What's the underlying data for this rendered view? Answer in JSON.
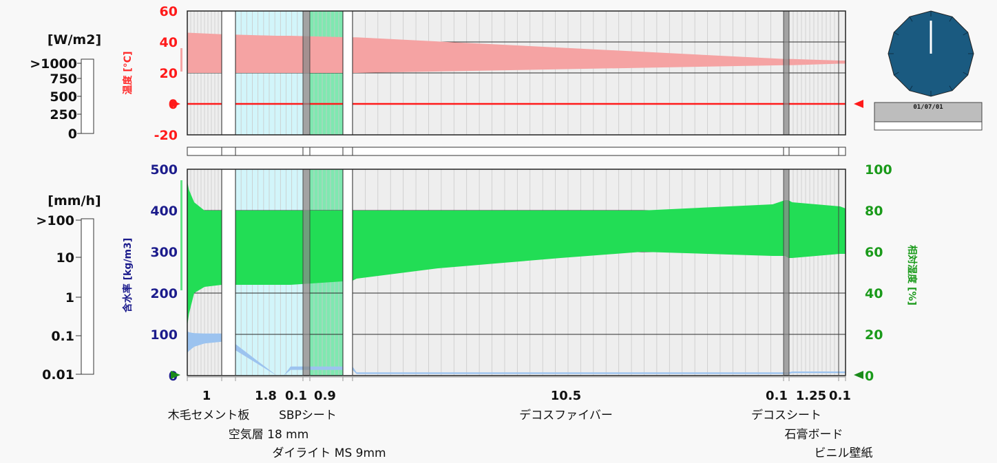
{
  "colors": {
    "temperature": "#ff1a1a",
    "temperature_band": "#f5a3a3",
    "humidity": "#22dd55",
    "moisture": "#9cc3ef",
    "moisture_axis": "#1c1c8c",
    "humidity_axis": "#1a9a1a",
    "air_layer": "#d2f5fa",
    "sbp_layer": "#7fe8b0",
    "clock_face": "#1a5a80"
  },
  "radiation_scale": {
    "unit": "[W/m2]",
    "ticks": [
      ">1000",
      "750",
      "500",
      "250",
      "0"
    ]
  },
  "rain_scale": {
    "unit": "[mm/h]",
    "ticks": [
      ">100",
      "10",
      "1",
      "0.1",
      "0.01"
    ]
  },
  "clock": {
    "date": "01/07/01"
  },
  "chart_data": [
    {
      "type": "area",
      "ylabel": "温度 [°C]",
      "ylim": [
        -20,
        60
      ],
      "yticks": [
        "60",
        "40",
        "20",
        "0",
        "-20"
      ],
      "x_thickness_mm": [
        0,
        1,
        1.8,
        1.9,
        2.0,
        2.9,
        3.0,
        13.5,
        13.6,
        13.7,
        14.95,
        15.05
      ],
      "series": [
        {
          "upper": [
            46,
            45,
            44,
            44,
            44,
            43,
            43,
            29,
            29,
            29,
            28,
            28
          ],
          "lower": [
            20,
            20,
            20,
            20,
            20,
            20,
            20,
            25,
            25,
            25,
            26,
            26
          ]
        }
      ],
      "reference_line": 0,
      "grid": true
    },
    {
      "type": "area",
      "ylabel": "含水率 [kg/m3]",
      "ylim": [
        0,
        500
      ],
      "yticks": [
        "500",
        "400",
        "300",
        "200",
        "100",
        "0"
      ],
      "y2label": "相対湿度 [%]",
      "y2lim": [
        0,
        100
      ],
      "y2ticks": [
        "100",
        "80",
        "60",
        "40",
        "20",
        "0"
      ],
      "x_thickness_mm": [
        0,
        0.05,
        0.2,
        0.5,
        1,
        1.8,
        1.9,
        2.0,
        2.9,
        3.0,
        5.0,
        8.0,
        10.0,
        13.2,
        13.5,
        13.6,
        13.7,
        14.95,
        15.05
      ],
      "series": [
        {
          "axis": "y2",
          "upper": [
            94,
            90,
            84,
            80,
            80,
            80,
            80,
            80,
            80,
            80,
            80,
            80,
            80,
            83,
            85,
            85,
            84,
            82,
            81
          ],
          "lower": [
            24,
            30,
            40,
            43,
            44,
            44,
            44,
            44,
            46,
            47,
            52,
            57,
            60,
            58,
            58,
            57,
            57,
            59,
            59
          ]
        },
        {
          "axis": "y",
          "upper": [
            108,
            105,
            103,
            102,
            102,
            0,
            0,
            22,
            22,
            8,
            8,
            8,
            8,
            8,
            8,
            8,
            10,
            10,
            10
          ],
          "lower": [
            55,
            60,
            70,
            78,
            82,
            0,
            0,
            14,
            14,
            4,
            4,
            4,
            4,
            4,
            4,
            4,
            6,
            6,
            6
          ]
        }
      ],
      "grid": true
    }
  ],
  "layers": [
    {
      "thickness_label": "1",
      "name": "木毛セメント板"
    },
    {
      "thickness_label": "1.8",
      "name": "空気層 18 mm"
    },
    {
      "thickness_label": "0.1",
      "name": "SBPシート"
    },
    {
      "thickness_label": "0.9",
      "name": "ダイライト MS 9mm"
    },
    {
      "thickness_label": "10.5",
      "name": "デコスファイバー"
    },
    {
      "thickness_label": "0.1",
      "name": "デコスシート"
    },
    {
      "thickness_label": "1.25",
      "name": "石膏ボード"
    },
    {
      "thickness_label": "0.1",
      "name": "ビニル壁紙"
    }
  ]
}
